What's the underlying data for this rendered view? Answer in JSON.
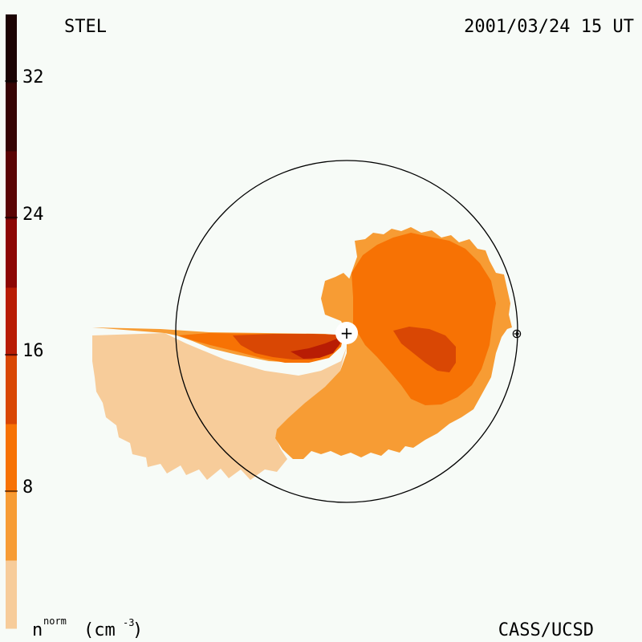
{
  "title_left": "STEL",
  "timestamp": "2001/03/24 15 UT",
  "credit": "CASS/UCSD",
  "legend": {
    "unit_base": "n",
    "unit_sup": "norm",
    "unit_paren_open": "(cm",
    "unit_exp": "-3",
    "unit_paren_close": ")",
    "ticks": [
      "8",
      "16",
      "24",
      "32"
    ],
    "bands": [
      {
        "min": 0,
        "max": 4,
        "color": "#f7cc9a"
      },
      {
        "min": 4,
        "max": 8,
        "color": "#f79c34"
      },
      {
        "min": 8,
        "max": 12,
        "color": "#f77204"
      },
      {
        "min": 12,
        "max": 16,
        "color": "#d94704"
      },
      {
        "min": 16,
        "max": 20,
        "color": "#b81c04"
      },
      {
        "min": 20,
        "max": 24,
        "color": "#8c0604"
      },
      {
        "min": 24,
        "max": 28,
        "color": "#5a0404"
      },
      {
        "min": 28,
        "max": 32,
        "color": "#360404"
      },
      {
        "min": 32,
        "max": 36,
        "color": "#1c0404"
      }
    ]
  },
  "markers": {
    "sun_symbol": "+",
    "earth_symbol": "⊕"
  }
}
